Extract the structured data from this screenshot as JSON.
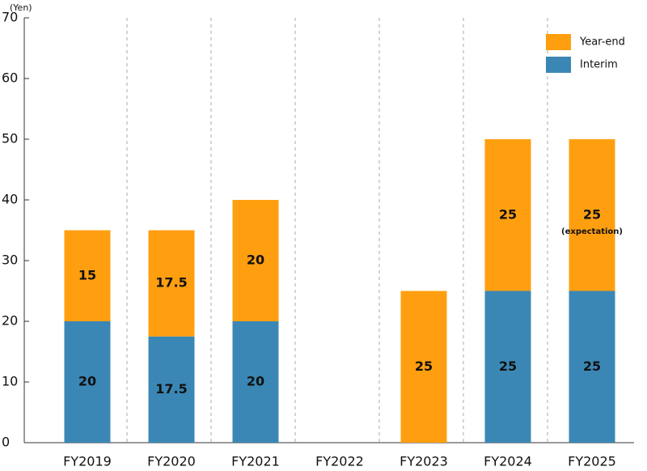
{
  "chart_data": {
    "type": "stacked_bar",
    "y_unit": "(Yen)",
    "categories": [
      "FY2019",
      "FY2020",
      "FY2021",
      "FY2022",
      "FY2023",
      "FY2024",
      "FY2025"
    ],
    "series": [
      {
        "name": "Interim",
        "color": "#3a87b5",
        "values": [
          20,
          17.5,
          20,
          null,
          null,
          25,
          25
        ]
      },
      {
        "name": "Year-end",
        "color": "#ff9f10",
        "values": [
          15,
          17.5,
          20,
          null,
          25,
          25,
          25
        ]
      }
    ],
    "annotation": {
      "category": "FY2025",
      "series": "Year-end",
      "text": "(expectation)"
    },
    "ylim": [
      0,
      70
    ],
    "yticks": [
      0,
      10,
      20,
      30,
      40,
      50,
      60,
      70
    ],
    "legend": "top-right"
  }
}
